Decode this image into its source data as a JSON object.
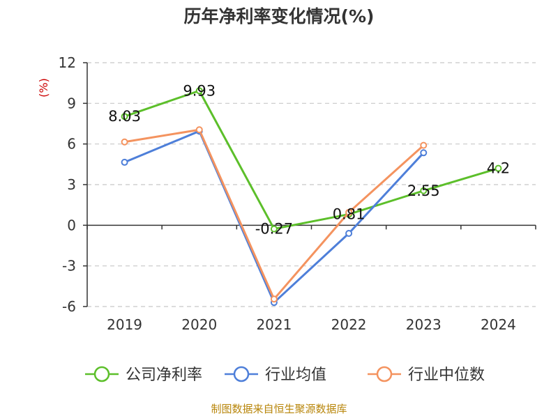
{
  "chart_data": {
    "type": "line",
    "title": "历年净利率变化情况(%)",
    "ylabel": "(%)",
    "categories": [
      "2019",
      "2020",
      "2021",
      "2022",
      "2023",
      "2024"
    ],
    "ylim": [
      -6,
      12
    ],
    "yticks": [
      -6,
      -3,
      0,
      3,
      6,
      9,
      12
    ],
    "y_tick_labels": [
      "-6",
      "-3",
      "0",
      "3",
      "6",
      "9",
      "12"
    ],
    "grid": true,
    "legend_position": "bottom",
    "series": [
      {
        "name": "公司净利率",
        "color": "#5cbf2a",
        "values": [
          8.03,
          9.93,
          -0.27,
          0.81,
          2.55,
          4.2
        ],
        "labels": [
          "8.03",
          "9.93",
          "-0.27",
          "0.81",
          "2.55",
          "4.2"
        ]
      },
      {
        "name": "行业均值",
        "color": "#4e7fd9",
        "values": [
          4.65,
          6.95,
          -5.7,
          -0.6,
          5.35,
          null
        ]
      },
      {
        "name": "行业中位数",
        "color": "#f4935f",
        "values": [
          6.15,
          7.05,
          -5.45,
          0.95,
          5.9,
          null
        ]
      }
    ]
  },
  "footer": {
    "source": "制图数据来自恒生聚源数据库"
  }
}
